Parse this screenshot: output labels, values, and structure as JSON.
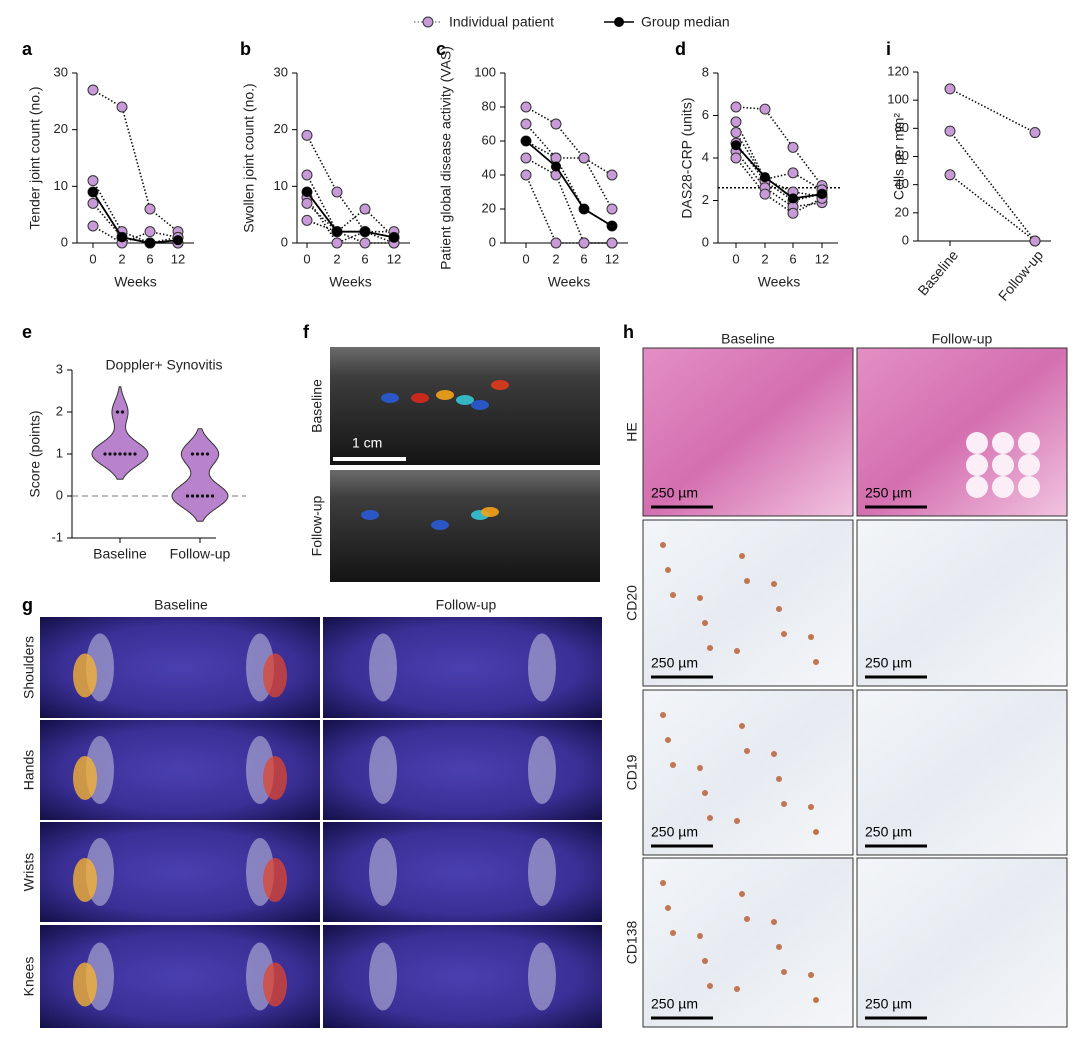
{
  "legend": [
    {
      "label": "Individual patient",
      "color": "#c89bd8"
    },
    {
      "label": "Group median",
      "color": "#000000"
    }
  ],
  "chart_data": [
    {
      "type": "line",
      "panel": "a",
      "ylabel": "Tender joint count (no.)",
      "xlabel": "Weeks",
      "categories": [
        "0",
        "2",
        "6",
        "12"
      ],
      "ylim": [
        0,
        30
      ],
      "yticks": [
        0,
        10,
        20,
        30
      ],
      "patients": [
        [
          27,
          24,
          6,
          2
        ],
        [
          11,
          2,
          0,
          0
        ],
        [
          9,
          1,
          0,
          1
        ],
        [
          7,
          1,
          0,
          0
        ],
        [
          3,
          0,
          2,
          1
        ]
      ],
      "median": [
        9,
        1,
        0,
        0.5
      ]
    },
    {
      "type": "line",
      "panel": "b",
      "ylabel": "Swollen joint count (no.)",
      "xlabel": "Weeks",
      "categories": [
        "0",
        "2",
        "6",
        "12"
      ],
      "ylim": [
        0,
        30
      ],
      "yticks": [
        0,
        10,
        20,
        30
      ],
      "patients": [
        [
          19,
          9,
          2,
          1
        ],
        [
          12,
          2,
          6,
          1
        ],
        [
          9,
          2,
          2,
          0
        ],
        [
          8,
          0,
          2,
          2
        ],
        [
          7,
          2,
          0,
          0
        ],
        [
          4,
          2,
          2,
          1
        ]
      ],
      "median": [
        9,
        2,
        2,
        1
      ]
    },
    {
      "type": "line",
      "panel": "c",
      "ylabel": "Patient global disease activity (VAS)",
      "xlabel": "Weeks",
      "categories": [
        "0",
        "2",
        "6",
        "12"
      ],
      "ylim": [
        0,
        100
      ],
      "yticks": [
        0,
        20,
        40,
        60,
        80,
        100
      ],
      "patients": [
        [
          80,
          70,
          50,
          40
        ],
        [
          70,
          50,
          50,
          20
        ],
        [
          60,
          50,
          20,
          10
        ],
        [
          50,
          40,
          0,
          0
        ],
        [
          40,
          0,
          0,
          0
        ]
      ],
      "median": [
        60,
        45,
        20,
        10
      ]
    },
    {
      "type": "line",
      "panel": "d",
      "ylabel": "DAS28-CRP (units)",
      "xlabel": "Weeks",
      "categories": [
        "0",
        "2",
        "6",
        "12"
      ],
      "ylim": [
        0,
        8
      ],
      "yticks": [
        0,
        2,
        4,
        6,
        8
      ],
      "threshold": 2.6,
      "patients": [
        [
          6.4,
          6.3,
          4.5,
          2.7
        ],
        [
          5.7,
          3.0,
          3.3,
          2.5
        ],
        [
          5.2,
          3.0,
          2.4,
          2.2
        ],
        [
          4.7,
          2.9,
          2.0,
          2.3
        ],
        [
          4.3,
          2.6,
          1.7,
          1.9
        ],
        [
          4.0,
          2.3,
          1.4,
          2.1
        ]
      ],
      "median": [
        4.6,
        3.1,
        2.1,
        2.3
      ]
    },
    {
      "type": "line",
      "panel": "i",
      "ylabel": "Cells per mm²",
      "categories": [
        "Baseline",
        "Follow-up"
      ],
      "ylim": [
        0,
        120
      ],
      "yticks": [
        0,
        20,
        40,
        60,
        80,
        100,
        120
      ],
      "patients": [
        [
          108,
          77
        ],
        [
          78,
          0
        ],
        [
          47,
          0
        ]
      ]
    },
    {
      "type": "violin",
      "panel": "e",
      "title": "Doppler+ Synovitis",
      "ylabel": "Score (points)",
      "categories": [
        "Baseline",
        "Follow-up"
      ],
      "ylim": [
        -1,
        3
      ],
      "yticks": [
        -1,
        0,
        1,
        2,
        3
      ],
      "reference_line": 0,
      "color": "#b883cc",
      "values": [
        [
          1,
          1,
          1,
          1,
          1,
          1,
          1,
          2,
          2
        ],
        [
          0,
          0,
          0,
          0,
          0,
          0,
          1,
          1,
          1,
          1
        ]
      ]
    }
  ],
  "figure_panels": {
    "f": {
      "panel": "f",
      "rows": [
        "Baseline",
        "Follow-up"
      ],
      "scale_bar": "1 cm"
    },
    "g": {
      "panel": "g",
      "columns": [
        "Baseline",
        "Follow-up"
      ],
      "rows": [
        "Shoulders",
        "Hands",
        "Wrists",
        "Knees"
      ]
    },
    "h": {
      "panel": "h",
      "columns": [
        "Baseline",
        "Follow-up"
      ],
      "rows": [
        "HE",
        "CD20",
        "CD19",
        "CD138"
      ],
      "scale_bar": "250 µm"
    }
  }
}
